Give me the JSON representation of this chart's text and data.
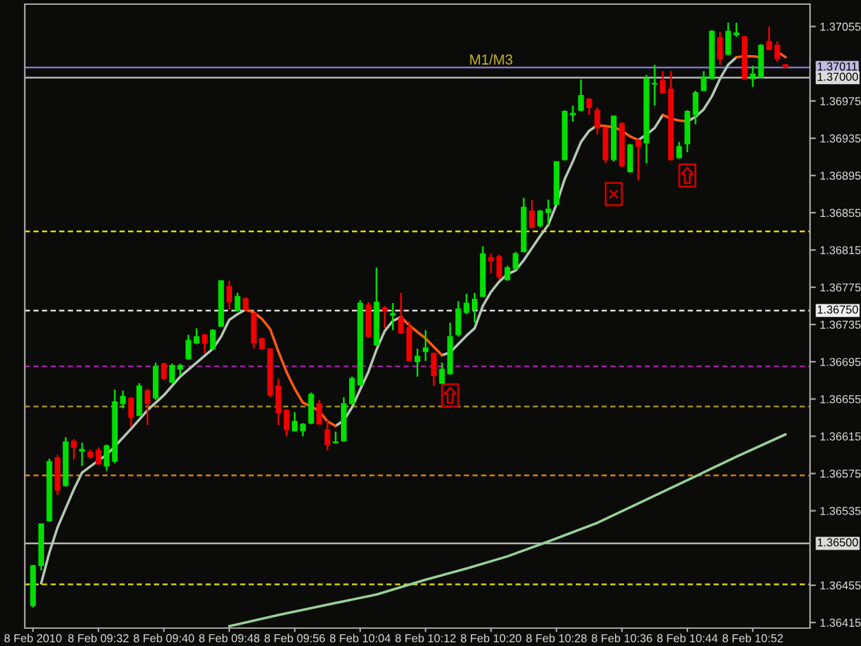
{
  "chart_data": {
    "type": "candlestick",
    "x": [
      "2010-02-08T09:24",
      "2010-02-08T09:25",
      "2010-02-08T09:26",
      "2010-02-08T09:27",
      "2010-02-08T09:28",
      "2010-02-08T09:29",
      "2010-02-08T09:30",
      "2010-02-08T09:31",
      "2010-02-08T09:32",
      "2010-02-08T09:33",
      "2010-02-08T09:34",
      "2010-02-08T09:35",
      "2010-02-08T09:36",
      "2010-02-08T09:37",
      "2010-02-08T09:38",
      "2010-02-08T09:39",
      "2010-02-08T09:40",
      "2010-02-08T09:41",
      "2010-02-08T09:42",
      "2010-02-08T09:43",
      "2010-02-08T09:44",
      "2010-02-08T09:45",
      "2010-02-08T09:46",
      "2010-02-08T09:47",
      "2010-02-08T09:48",
      "2010-02-08T09:49",
      "2010-02-08T09:50",
      "2010-02-08T09:51",
      "2010-02-08T09:52",
      "2010-02-08T09:53",
      "2010-02-08T09:54",
      "2010-02-08T09:55",
      "2010-02-08T09:56",
      "2010-02-08T09:57",
      "2010-02-08T09:58",
      "2010-02-08T09:59",
      "2010-02-08T10:00",
      "2010-02-08T10:01",
      "2010-02-08T10:02",
      "2010-02-08T10:03",
      "2010-02-08T10:04",
      "2010-02-08T10:05",
      "2010-02-08T10:06",
      "2010-02-08T10:07",
      "2010-02-08T10:08",
      "2010-02-08T10:09",
      "2010-02-08T10:10",
      "2010-02-08T10:11",
      "2010-02-08T10:12",
      "2010-02-08T10:13",
      "2010-02-08T10:14",
      "2010-02-08T10:15",
      "2010-02-08T10:16",
      "2010-02-08T10:17",
      "2010-02-08T10:18",
      "2010-02-08T10:19",
      "2010-02-08T10:20",
      "2010-02-08T10:21",
      "2010-02-08T10:22",
      "2010-02-08T10:23",
      "2010-02-08T10:24",
      "2010-02-08T10:25",
      "2010-02-08T10:26",
      "2010-02-08T10:27",
      "2010-02-08T10:28",
      "2010-02-08T10:29",
      "2010-02-08T10:30",
      "2010-02-08T10:31",
      "2010-02-08T10:32",
      "2010-02-08T10:33",
      "2010-02-08T10:34",
      "2010-02-08T10:35",
      "2010-02-08T10:36",
      "2010-02-08T10:37",
      "2010-02-08T10:38",
      "2010-02-08T10:39",
      "2010-02-08T10:40",
      "2010-02-08T10:41",
      "2010-02-08T10:42",
      "2010-02-08T10:43",
      "2010-02-08T10:44",
      "2010-02-08T10:45",
      "2010-02-08T10:46",
      "2010-02-08T10:47",
      "2010-02-08T10:48",
      "2010-02-08T10:49",
      "2010-02-08T10:50",
      "2010-02-08T10:51",
      "2010-02-08T10:52",
      "2010-02-08T10:53",
      "2010-02-08T10:54",
      "2010-02-08T10:55",
      "2010-02-08T10:56"
    ],
    "ohlc": [
      [
        1.36433,
        1.36477,
        1.36431,
        1.36476
      ],
      [
        1.36476,
        1.36521,
        1.36471,
        1.36521
      ],
      [
        1.36524,
        1.36591,
        1.36523,
        1.36588
      ],
      [
        1.36592,
        1.36595,
        1.36552,
        1.36557
      ],
      [
        1.36562,
        1.36614,
        1.36561,
        1.36609
      ],
      [
        1.3661,
        1.36612,
        1.3659,
        1.36603
      ],
      [
        1.36599,
        1.36608,
        1.36583,
        1.36601
      ],
      [
        1.36598,
        1.36601,
        1.36591,
        1.36593
      ],
      [
        1.366,
        1.36603,
        1.36585,
        1.36585
      ],
      [
        1.36583,
        1.36606,
        1.36578,
        1.36605
      ],
      [
        1.36588,
        1.36665,
        1.36586,
        1.36652
      ],
      [
        1.3665,
        1.36664,
        1.36645,
        1.36658
      ],
      [
        1.36656,
        1.36657,
        1.36625,
        1.36635
      ],
      [
        1.36637,
        1.36672,
        1.36637,
        1.36669
      ],
      [
        1.36664,
        1.36666,
        1.36627,
        1.3665
      ],
      [
        1.36656,
        1.36694,
        1.36654,
        1.3669
      ],
      [
        1.36693,
        1.36694,
        1.36675,
        1.36677
      ],
      [
        1.36673,
        1.36693,
        1.36672,
        1.36691
      ],
      [
        1.36687,
        1.36693,
        1.3668,
        1.36691
      ],
      [
        1.36698,
        1.36724,
        1.36697,
        1.36718
      ],
      [
        1.36715,
        1.36731,
        1.36714,
        1.36722
      ],
      [
        1.36724,
        1.36725,
        1.36704,
        1.36715
      ],
      [
        1.36709,
        1.3673,
        1.36708,
        1.36729
      ],
      [
        1.36733,
        1.36782,
        1.36733,
        1.36782
      ],
      [
        1.36776,
        1.36782,
        1.36751,
        1.36759
      ],
      [
        1.3675,
        1.36769,
        1.36749,
        1.36765
      ],
      [
        1.36763,
        1.36764,
        1.36749,
        1.36751
      ],
      [
        1.36747,
        1.36748,
        1.36709,
        1.36715
      ],
      [
        1.3672,
        1.36721,
        1.36708,
        1.36709
      ],
      [
        1.36709,
        1.36709,
        1.36657,
        1.36659
      ],
      [
        1.36669,
        1.36677,
        1.36627,
        1.3664
      ],
      [
        1.36643,
        1.36644,
        1.36615,
        1.36622
      ],
      [
        1.36621,
        1.36641,
        1.3662,
        1.36631
      ],
      [
        1.36621,
        1.36629,
        1.36615,
        1.36628
      ],
      [
        1.36629,
        1.36662,
        1.36628,
        1.3666
      ],
      [
        1.3665,
        1.36654,
        1.36628,
        1.36628
      ],
      [
        1.36622,
        1.36632,
        1.366,
        1.36606
      ],
      [
        1.36608,
        1.3662,
        1.36607,
        1.36609
      ],
      [
        1.3661,
        1.36657,
        1.36609,
        1.3665
      ],
      [
        1.3665,
        1.36679,
        1.36649,
        1.36677
      ],
      [
        1.3667,
        1.36761,
        1.36669,
        1.36758
      ],
      [
        1.36756,
        1.36759,
        1.36721,
        1.36722
      ],
      [
        1.36713,
        1.36796,
        1.36712,
        1.36759
      ],
      [
        1.36753,
        1.36755,
        1.36731,
        1.3675
      ],
      [
        1.36745,
        1.36758,
        1.36729,
        1.36747
      ],
      [
        1.36742,
        1.36769,
        1.36725,
        1.36726
      ],
      [
        1.36732,
        1.36738,
        1.36696,
        1.36696
      ],
      [
        1.36695,
        1.36709,
        1.36679,
        1.36701
      ],
      [
        1.36706,
        1.36729,
        1.36696,
        1.3671
      ],
      [
        1.36704,
        1.36705,
        1.36669,
        1.3668
      ],
      [
        1.36672,
        1.36694,
        1.36671,
        1.36687
      ],
      [
        1.36682,
        1.36737,
        1.36681,
        1.36722
      ],
      [
        1.36724,
        1.3676,
        1.36722,
        1.36752
      ],
      [
        1.36748,
        1.36768,
        1.36746,
        1.36758
      ],
      [
        1.36751,
        1.36769,
        1.36737,
        1.36762
      ],
      [
        1.36765,
        1.36819,
        1.36765,
        1.36811
      ],
      [
        1.36807,
        1.36811,
        1.3679,
        1.36803
      ],
      [
        1.36808,
        1.3681,
        1.36783,
        1.36786
      ],
      [
        1.36783,
        1.36798,
        1.36782,
        1.36796
      ],
      [
        1.36795,
        1.36813,
        1.36794,
        1.36811
      ],
      [
        1.36813,
        1.36871,
        1.36813,
        1.36861
      ],
      [
        1.36857,
        1.36869,
        1.36838,
        1.36839
      ],
      [
        1.36841,
        1.36858,
        1.36839,
        1.36857
      ],
      [
        1.36855,
        1.36869,
        1.36842,
        1.36859
      ],
      [
        1.36864,
        1.3691,
        1.36863,
        1.3691
      ],
      [
        1.36912,
        1.36965,
        1.36911,
        1.36964
      ],
      [
        1.3696,
        1.3697,
        1.36953,
        1.36962
      ],
      [
        1.36965,
        1.36998,
        1.36964,
        1.36981
      ],
      [
        1.36977,
        1.36978,
        1.3696,
        1.36968
      ],
      [
        1.36965,
        1.36968,
        1.36939,
        1.36946
      ],
      [
        1.36946,
        1.36947,
        1.36908,
        1.36912
      ],
      [
        1.36912,
        1.36959,
        1.3691,
        1.36959
      ],
      [
        1.36951,
        1.36952,
        1.36904,
        1.36905
      ],
      [
        1.36899,
        1.36929,
        1.36898,
        1.36928
      ],
      [
        1.36933,
        1.36934,
        1.3689,
        1.36926
      ],
      [
        1.3693,
        1.37003,
        1.36908,
        1.36999
      ],
      [
        1.36993,
        1.37014,
        1.3697,
        1.36994
      ],
      [
        1.36997,
        1.37007,
        1.36983,
        1.36984
      ],
      [
        1.36988,
        1.37007,
        1.36911,
        1.36912
      ],
      [
        1.36914,
        1.36931,
        1.36913,
        1.36926
      ],
      [
        1.36929,
        1.36965,
        1.3692,
        1.36964
      ],
      [
        1.3696,
        1.36986,
        1.3695,
        1.36984
      ],
      [
        1.36986,
        1.37007,
        1.36986,
        1.37001
      ],
      [
        1.36999,
        1.37051,
        1.36999,
        1.3705
      ],
      [
        1.37043,
        1.37049,
        1.37014,
        1.3702
      ],
      [
        1.37025,
        1.37059,
        1.37024,
        1.3705
      ],
      [
        1.37046,
        1.37059,
        1.37044,
        1.37048
      ],
      [
        1.37044,
        1.37045,
        1.36999,
        1.36999
      ],
      [
        1.36999,
        1.37013,
        1.3699,
        1.37004
      ],
      [
        1.37,
        1.37036,
        1.37,
        1.37035
      ],
      [
        1.37039,
        1.37055,
        1.3703,
        1.3703
      ],
      [
        1.37035,
        1.37039,
        1.37017,
        1.3702
      ],
      [
        1.37014,
        1.37014,
        1.3701,
        1.37011
      ]
    ],
    "series": [
      {
        "type": "line",
        "color": "#b4c8b4",
        "x": [
          "2010-02-08T09:25",
          "2010-02-08T09:26",
          "2010-02-08T09:27",
          "2010-02-08T09:29",
          "2010-02-08T09:30",
          "2010-02-08T09:32",
          "2010-02-08T09:33",
          "2010-02-08T09:34",
          "2010-02-08T09:36",
          "2010-02-08T09:38",
          "2010-02-08T09:40",
          "2010-02-08T09:42",
          "2010-02-08T09:44",
          "2010-02-08T09:46",
          "2010-02-08T09:47",
          "2010-02-08T09:48",
          "2010-02-08T09:49",
          "2010-02-08T09:50",
          "2010-02-08T09:51",
          "2010-02-08T10:01",
          "2010-02-08T10:02",
          "2010-02-08T10:03",
          "2010-02-08T10:04",
          "2010-02-08T10:05",
          "2010-02-08T10:06",
          "2010-02-08T10:07",
          "2010-02-08T10:08",
          "2010-02-08T10:09",
          "2010-02-08T10:10",
          "2010-02-08T10:14",
          "2010-02-08T10:15",
          "2010-02-08T10:16",
          "2010-02-08T10:17",
          "2010-02-08T10:18",
          "2010-02-08T10:19",
          "2010-02-08T10:20",
          "2010-02-08T10:21",
          "2010-02-08T10:22",
          "2010-02-08T10:23",
          "2010-02-08T10:24",
          "2010-02-08T10:25",
          "2010-02-08T10:26",
          "2010-02-08T10:27",
          "2010-02-08T10:28",
          "2010-02-08T10:29",
          "2010-02-08T10:30",
          "2010-02-08T10:31",
          "2010-02-08T10:32",
          "2010-02-08T10:33",
          "2010-02-08T10:34",
          "2010-02-08T10:38",
          "2010-02-08T10:39",
          "2010-02-08T10:40",
          "2010-02-08T10:41",
          "2010-02-08T10:42",
          "2010-02-08T10:44",
          "2010-02-08T10:45",
          "2010-02-08T10:46",
          "2010-02-08T10:47",
          "2010-02-08T10:48",
          "2010-02-08T10:49",
          "2010-02-08T10:50"
        ],
        "values": [
          1.36457,
          1.3649,
          1.36517,
          1.36558,
          1.36576,
          1.36589,
          1.36595,
          1.36604,
          1.36623,
          1.36643,
          1.36659,
          1.36679,
          1.36694,
          1.36709,
          1.36722,
          1.3674,
          1.36746,
          1.36751,
          null,
          1.36626,
          1.36632,
          1.36646,
          1.36665,
          1.36684,
          1.36708,
          1.36728,
          1.36739,
          1.36743,
          null,
          1.36702,
          1.36705,
          1.36714,
          1.36723,
          1.36731,
          1.36755,
          1.3677,
          1.36781,
          1.36789,
          1.36793,
          1.36804,
          1.36817,
          1.3683,
          1.36842,
          1.36864,
          1.36891,
          1.3691,
          1.36931,
          1.36943,
          1.36949,
          null,
          1.36933,
          1.36939,
          1.36946,
          1.3696,
          null,
          1.36953,
          1.36958,
          1.36966,
          1.3698,
          1.36999,
          1.37014,
          1.37022
        ]
      },
      {
        "type": "line",
        "color": "#ff5a10",
        "x": [
          "2010-02-08T09:50",
          "2010-02-08T09:51",
          "2010-02-08T09:52",
          "2010-02-08T09:53",
          "2010-02-08T09:54",
          "2010-02-08T09:55",
          "2010-02-08T09:56",
          "2010-02-08T09:57",
          "2010-02-08T09:58",
          "2010-02-08T09:59",
          "2010-02-08T10:00",
          "2010-02-08T10:01",
          "2010-02-08T10:02",
          "2010-02-08T10:09",
          "2010-02-08T10:10",
          "2010-02-08T10:11",
          "2010-02-08T10:12",
          "2010-02-08T10:13",
          "2010-02-08T10:14",
          "2010-02-08T10:15",
          "2010-02-08T10:33",
          "2010-02-08T10:34",
          "2010-02-08T10:35",
          "2010-02-08T10:36",
          "2010-02-08T10:37",
          "2010-02-08T10:38",
          "2010-02-08T10:39",
          "2010-02-08T10:41",
          "2010-02-08T10:42",
          "2010-02-08T10:43",
          "2010-02-08T10:44",
          "2010-02-08T10:45",
          "2010-02-08T10:50",
          "2010-02-08T10:51",
          "2010-02-08T10:52",
          "2010-02-08T10:53",
          "2010-02-08T10:54",
          "2010-02-08T10:55",
          "2010-02-08T10:56"
        ],
        "values": [
          1.36751,
          1.36748,
          1.36741,
          1.3673,
          1.36706,
          1.36684,
          1.36666,
          1.36651,
          1.36647,
          1.36642,
          1.36631,
          1.36626,
          null,
          1.36743,
          1.36734,
          1.36727,
          1.3672,
          1.36711,
          1.36702,
          null,
          1.36949,
          1.36948,
          1.36947,
          1.36943,
          1.36937,
          1.36933,
          null,
          1.3696,
          1.36956,
          1.36954,
          1.36953,
          null,
          1.37022,
          1.37023,
          1.37023,
          1.37022,
          null,
          1.37028,
          1.37022
        ]
      },
      {
        "type": "line",
        "color": "#98d098",
        "x": [
          "2010-02-08T09:48",
          "2010-02-08T09:54",
          "2010-02-08T10:01",
          "2010-02-08T10:06",
          "2010-02-08T10:12",
          "2010-02-08T10:17",
          "2010-02-08T10:22",
          "2010-02-08T10:27",
          "2010-02-08T10:33",
          "2010-02-08T10:39",
          "2010-02-08T10:45",
          "2010-02-08T10:50",
          "2010-02-08T10:56"
        ],
        "values": [
          1.36411,
          1.36423,
          1.36436,
          1.36445,
          1.36461,
          1.36473,
          1.36486,
          1.36502,
          1.36522,
          1.36547,
          1.36572,
          1.36593,
          1.36617
        ]
      },
      {
        "type": "scatter",
        "marker": "triangle",
        "color": "#c80000",
        "x": [
          "2010-02-08T10:15",
          "2010-02-08T10:44"
        ],
        "values": [
          1.36659,
          1.36895
        ]
      },
      {
        "type": "scatter",
        "marker": "cross",
        "color": "#c80000",
        "x": [
          "2010-02-08T10:35"
        ],
        "values": [
          1.36875
        ]
      }
    ],
    "xlim": [
      "2010-02-08T09:23",
      "2010-02-08T10:59"
    ],
    "xticks": [
      {
        "value": "2010-02-08T09:24",
        "label": "8 Feb 2010"
      },
      {
        "value": "2010-02-08T09:32",
        "label": "8 Feb 09:32"
      },
      {
        "value": "2010-02-08T09:40",
        "label": "8 Feb 09:40"
      },
      {
        "value": "2010-02-08T09:48",
        "label": "8 Feb 09:48"
      },
      {
        "value": "2010-02-08T09:56",
        "label": "8 Feb 09:56"
      },
      {
        "value": "2010-02-08T10:04",
        "label": "8 Feb 10:04"
      },
      {
        "value": "2010-02-08T10:12",
        "label": "8 Feb 10:12"
      },
      {
        "value": "2010-02-08T10:20",
        "label": "8 Feb 10:20"
      },
      {
        "value": "2010-02-08T10:28",
        "label": "8 Feb 10:28"
      },
      {
        "value": "2010-02-08T10:36",
        "label": "8 Feb 10:36"
      },
      {
        "value": "2010-02-08T10:44",
        "label": "8 Feb 10:44"
      },
      {
        "value": "2010-02-08T10:52",
        "label": "8 Feb 10:52"
      }
    ],
    "ylim": [
      1.36409,
      1.37079
    ],
    "yticks": [
      1.36415,
      1.36455,
      1.36535,
      1.36575,
      1.36615,
      1.36655,
      1.36695,
      1.36735,
      1.36775,
      1.36815,
      1.36855,
      1.36895,
      1.36935,
      1.36975,
      1.37055
    ],
    "ref_lines": [
      {
        "axis": "y",
        "value": 1.37011,
        "label": "1.37011",
        "color": "#8478c8",
        "line_style": "solid"
      },
      {
        "axis": "y",
        "value": 1.37,
        "label": "1.37000",
        "color": "#b8b8b8",
        "line_style": "solid"
      },
      {
        "axis": "y",
        "value": 1.36835,
        "color": "#e0e000",
        "line_style": "dashed"
      },
      {
        "axis": "y",
        "value": 1.3675,
        "label": "1.36750",
        "color": "#e0e0e0",
        "line_style": "dashed"
      },
      {
        "axis": "y",
        "value": 1.3669,
        "color": "#a020a0",
        "line_style": "dashed"
      },
      {
        "axis": "y",
        "value": 1.36647,
        "color": "#a08c20",
        "line_style": "dashed"
      },
      {
        "axis": "y",
        "value": 1.36573,
        "color": "#d88000",
        "line_style": "dashed"
      },
      {
        "axis": "y",
        "value": 1.365,
        "label": "1.36500",
        "color": "#b8b8b8",
        "line_style": "solid"
      },
      {
        "axis": "y",
        "value": 1.36456,
        "color": "#d8d800",
        "line_style": "dashed"
      }
    ],
    "annotations": [
      {
        "text": "M1/M3",
        "x": "2010-02-08T10:20",
        "y": 1.37011
      }
    ]
  }
}
